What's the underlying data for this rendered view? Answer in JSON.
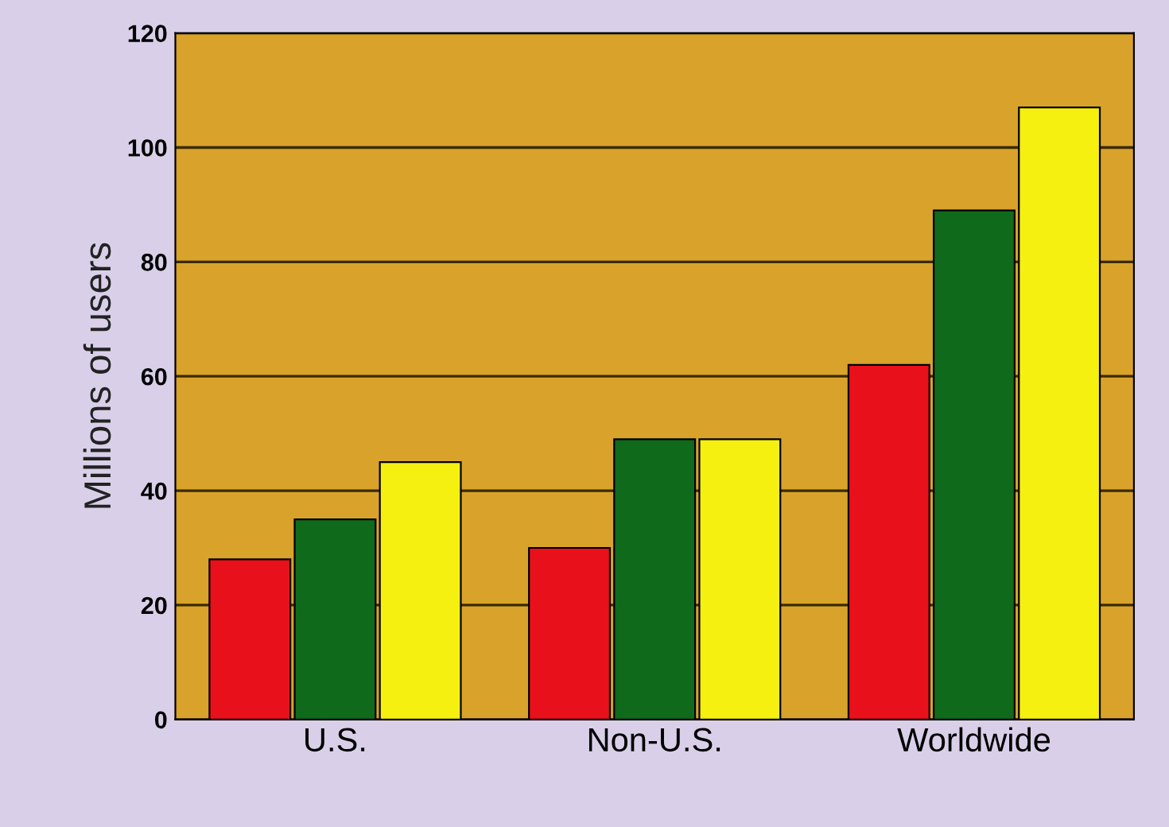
{
  "chart_data": {
    "type": "bar",
    "ylabel": "Millions of users",
    "categories": [
      "U.S.",
      "Non-U.S.",
      "Worldwide"
    ],
    "series": [
      {
        "color": "#e8101a",
        "values": [
          28,
          30,
          62
        ]
      },
      {
        "color": "#0f6a1c",
        "values": [
          35,
          49,
          89
        ]
      },
      {
        "color": "#f5f010",
        "values": [
          45,
          49,
          107
        ]
      }
    ],
    "ylim": [
      0,
      120
    ],
    "yticks": [
      0,
      20,
      40,
      60,
      80,
      100,
      120
    ],
    "grid": "y"
  }
}
